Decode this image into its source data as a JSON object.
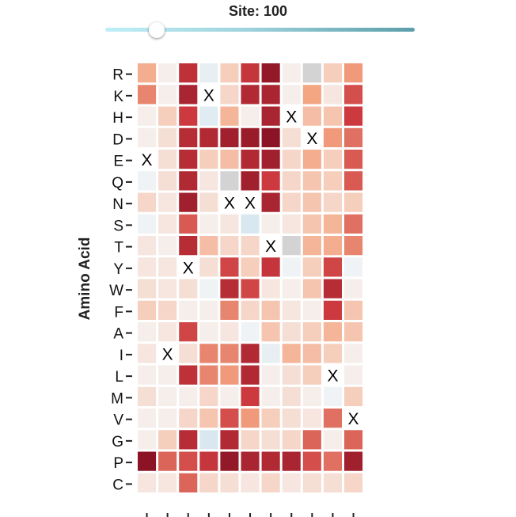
{
  "slider": {
    "label": "Site: 100",
    "value": 100,
    "min": 0,
    "max": 600,
    "track_colors": [
      "#bfeef7",
      "#5a9ea9"
    ]
  },
  "chart_data": {
    "type": "heatmap",
    "ylabel": "Amino Acid",
    "rows": [
      "R",
      "K",
      "H",
      "D",
      "E",
      "Q",
      "N",
      "S",
      "T",
      "Y",
      "W",
      "F",
      "A",
      "I",
      "L",
      "M",
      "V",
      "G",
      "P",
      "C"
    ],
    "columns": 11,
    "value_range": [
      -1,
      3
    ],
    "color_scale": {
      "negative": "#aed4e8",
      "neutral": "#f6f6f6",
      "positive_mid": "#f4a582",
      "positive_high": "#cc3a3f",
      "max": "#850f22",
      "missing": "#d3d3d3"
    },
    "wildtype_marker": "X",
    "values": [
      [
        0.9,
        0.1,
        2.2,
        -0.2,
        0.5,
        2.1,
        2.8,
        0.1,
        null,
        0.5,
        1.1
      ],
      [
        1.3,
        0.1,
        2.5,
        "X",
        0.4,
        2.4,
        2.5,
        0.1,
        1.0,
        0.2,
        1.8
      ],
      [
        0.1,
        0.5,
        2.0,
        -0.3,
        0.8,
        0.1,
        2.5,
        "X",
        0.7,
        0.6,
        2.0
      ],
      [
        0.1,
        0.3,
        2.3,
        2.4,
        2.6,
        2.7,
        2.9,
        0.3,
        "X",
        1.1,
        1.5
      ],
      [
        "X",
        0.3,
        2.3,
        0.5,
        0.7,
        2.4,
        2.6,
        0.4,
        0.9,
        0.5,
        1.7
      ],
      [
        -0.1,
        0.3,
        2.4,
        0.2,
        null,
        2.6,
        2.0,
        0.4,
        0.6,
        0.5,
        1.7
      ],
      [
        0.4,
        0.2,
        2.6,
        0.3,
        "X",
        "X",
        2.5,
        0.4,
        0.6,
        0.4,
        0.5
      ],
      [
        -0.1,
        0.2,
        1.7,
        0.1,
        0.2,
        -0.4,
        0.1,
        0.2,
        0.6,
        0.8,
        1.5
      ],
      [
        0.2,
        0.1,
        2.3,
        0.7,
        0.4,
        0.4,
        "X",
        null,
        0.8,
        0.9,
        1.3
      ],
      [
        0.2,
        0.2,
        "X",
        0.3,
        1.9,
        0.5,
        2.1,
        -0.1,
        0.5,
        1.9,
        -0.1
      ],
      [
        0.3,
        0.2,
        0.3,
        -0.1,
        2.3,
        1.9,
        0.2,
        0.1,
        0.6,
        2.3,
        0.1
      ],
      [
        0.5,
        0.4,
        0.1,
        0.1,
        1.3,
        0.4,
        0.6,
        0.2,
        0.1,
        2.0,
        0.6
      ],
      [
        0.1,
        0.2,
        1.9,
        0.1,
        0.2,
        -0.1,
        0.6,
        0.3,
        0.5,
        0.8,
        0.6
      ],
      [
        0.2,
        "X",
        0.3,
        1.3,
        1.3,
        2.4,
        -0.2,
        0.8,
        0.7,
        0.5,
        0.1
      ],
      [
        0.1,
        0.1,
        2.2,
        1.3,
        1.1,
        2.4,
        0.1,
        0.3,
        0.5,
        "X",
        0.1
      ],
      [
        0.3,
        0.1,
        0.1,
        0.4,
        0.1,
        2.0,
        0.1,
        0.3,
        0.1,
        -0.1,
        0.5
      ],
      [
        0.1,
        0.1,
        0.4,
        0.6,
        1.8,
        1.1,
        0.5,
        0.3,
        0.2,
        1.5,
        "X"
      ],
      [
        0.1,
        0.5,
        2.3,
        -0.4,
        2.4,
        0.4,
        0.3,
        0.4,
        1.6,
        0.1,
        1.6
      ],
      [
        2.9,
        1.6,
        1.8,
        2.1,
        2.8,
        2.5,
        2.4,
        2.5,
        1.8,
        1.5,
        2.6
      ],
      [
        0.2,
        0.2,
        1.6,
        0.4,
        0.3,
        0.2,
        0.4,
        0.2,
        0.3,
        0.3,
        0.4
      ]
    ]
  }
}
